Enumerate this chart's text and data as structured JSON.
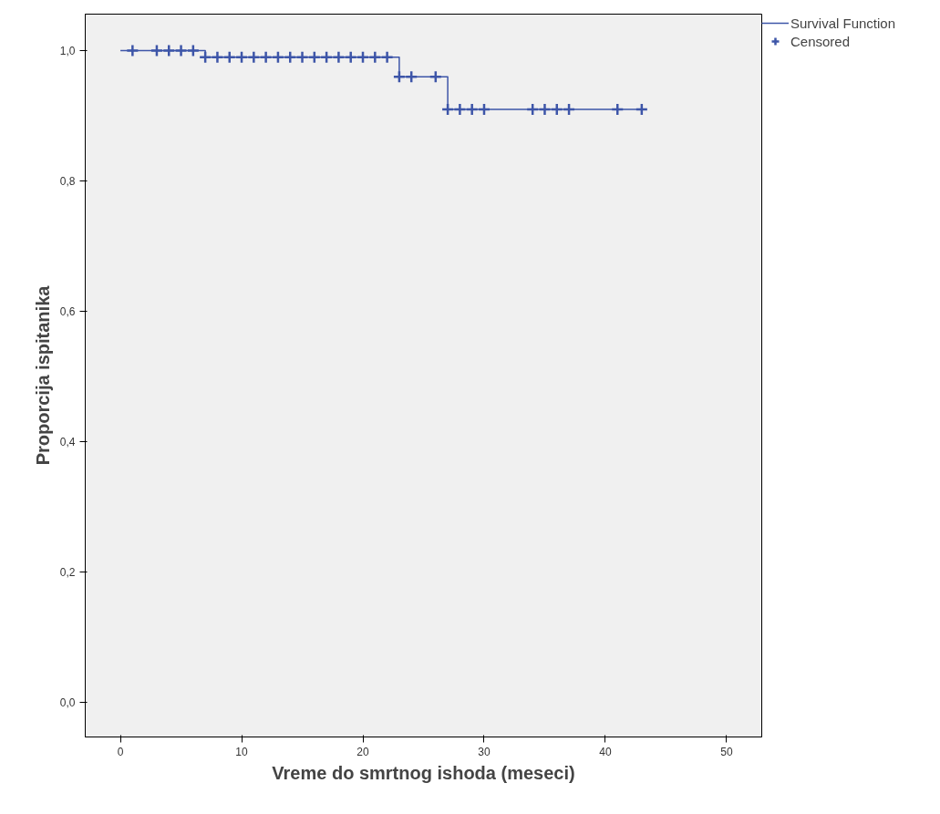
{
  "chart_data": {
    "type": "step",
    "xlabel": "Vreme do smrtnog ishoda (meseci)",
    "ylabel": "Proporcija ispitanika",
    "xlim": [
      -2.9,
      52.9
    ],
    "ylim": [
      -0.053,
      1.056
    ],
    "xticks": [
      0,
      10,
      20,
      30,
      40,
      50
    ],
    "yticks": [
      {
        "value": 0,
        "label": "0,0"
      },
      {
        "value": 0.2,
        "label": "0,2"
      },
      {
        "value": 0.4,
        "label": "0,4"
      },
      {
        "value": 0.6,
        "label": "0,6"
      },
      {
        "value": 0.8,
        "label": "0,8"
      },
      {
        "value": 1.0,
        "label": "1,0"
      }
    ],
    "grid": false,
    "legend": "right",
    "series": [
      {
        "name": "Survival Function",
        "color": "#3d55a8",
        "x": [
          0,
          7,
          23,
          27,
          43
        ],
        "values": [
          1.0,
          0.99,
          0.96,
          0.91,
          0.91
        ]
      },
      {
        "name": "Censored",
        "type": "scatter",
        "marker": "cross",
        "color": "#3d55a8",
        "x": [
          1,
          3,
          4,
          5,
          6,
          7,
          8,
          9,
          10,
          11,
          12,
          13,
          14,
          15,
          16,
          17,
          18,
          19,
          20,
          21,
          22,
          23,
          24,
          26,
          27,
          28,
          29,
          30,
          34,
          35,
          36,
          37,
          41,
          43
        ],
        "values": [
          1.0,
          1.0,
          1.0,
          1.0,
          1.0,
          0.99,
          0.99,
          0.99,
          0.99,
          0.99,
          0.99,
          0.99,
          0.99,
          0.99,
          0.99,
          0.99,
          0.99,
          0.99,
          0.99,
          0.99,
          0.99,
          0.96,
          0.96,
          0.96,
          0.91,
          0.91,
          0.91,
          0.91,
          0.91,
          0.91,
          0.91,
          0.91,
          0.91,
          0.91
        ]
      }
    ]
  }
}
